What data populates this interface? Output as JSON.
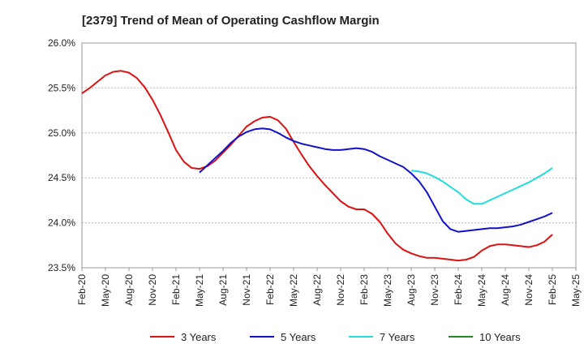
{
  "chart_data": {
    "type": "line",
    "title": "[2379]  Trend of Mean of Operating Cashflow Margin",
    "xlabel": "",
    "ylabel": "",
    "ylim": [
      23.5,
      26.0
    ],
    "yticks": [
      23.5,
      24.0,
      24.5,
      25.0,
      25.5,
      26.0
    ],
    "ytick_labels": [
      "23.5%",
      "24.0%",
      "24.5%",
      "25.0%",
      "25.5%",
      "26.0%"
    ],
    "xtick_labels": [
      "Feb-20",
      "May-20",
      "Aug-20",
      "Nov-20",
      "Feb-21",
      "May-21",
      "Aug-21",
      "Nov-21",
      "Feb-22",
      "May-22",
      "Aug-22",
      "Nov-22",
      "Feb-23",
      "May-23",
      "Aug-23",
      "Nov-23",
      "Feb-24",
      "May-24",
      "Aug-24",
      "Nov-24",
      "Feb-25",
      "May-25"
    ],
    "x_range_months": [
      0,
      63
    ],
    "series": [
      {
        "name": "3 Years",
        "color": "#dd1111",
        "x": [
          0,
          1,
          2,
          3,
          4,
          5,
          6,
          7,
          8,
          9,
          10,
          11,
          12,
          13,
          14,
          15,
          16,
          17,
          18,
          19,
          20,
          21,
          22,
          23,
          24,
          25,
          26,
          27,
          28,
          29,
          30,
          31,
          32,
          33,
          34,
          35,
          36,
          37,
          38,
          39,
          40,
          41,
          42,
          43,
          44,
          45,
          46,
          47,
          48,
          49,
          50,
          51,
          52,
          53,
          54,
          55,
          56,
          57,
          58,
          59,
          60
        ],
        "values": [
          25.44,
          25.5,
          25.57,
          25.64,
          25.68,
          25.69,
          25.67,
          25.61,
          25.51,
          25.37,
          25.2,
          25.01,
          24.81,
          24.68,
          24.61,
          24.6,
          24.63,
          24.69,
          24.78,
          24.87,
          24.97,
          25.07,
          25.13,
          25.17,
          25.18,
          25.14,
          25.05,
          24.9,
          24.76,
          24.63,
          24.52,
          24.42,
          24.33,
          24.24,
          24.18,
          24.15,
          24.15,
          24.1,
          24.01,
          23.88,
          23.77,
          23.7,
          23.66,
          23.63,
          23.61,
          23.61,
          23.6,
          23.59,
          23.58,
          23.59,
          23.62,
          23.69,
          23.74,
          23.76,
          23.76,
          23.75,
          23.74,
          23.73,
          23.75,
          23.79,
          23.87
        ]
      },
      {
        "name": "5 Years",
        "color": "#1111cc",
        "x": [
          15,
          16,
          17,
          18,
          19,
          20,
          21,
          22,
          23,
          24,
          25,
          26,
          27,
          28,
          29,
          30,
          31,
          32,
          33,
          34,
          35,
          36,
          37,
          38,
          39,
          40,
          41,
          42,
          43,
          44,
          45,
          46,
          47,
          48,
          49,
          50,
          51,
          52,
          53,
          54,
          55,
          56,
          57,
          58,
          59,
          60
        ],
        "values": [
          24.56,
          24.64,
          24.72,
          24.8,
          24.89,
          24.96,
          25.01,
          25.04,
          25.05,
          25.04,
          25.0,
          24.95,
          24.91,
          24.88,
          24.86,
          24.84,
          24.82,
          24.81,
          24.81,
          24.82,
          24.83,
          24.82,
          24.79,
          24.74,
          24.7,
          24.66,
          24.62,
          24.55,
          24.46,
          24.34,
          24.18,
          24.02,
          23.93,
          23.9,
          23.91,
          23.92,
          23.93,
          23.94,
          23.94,
          23.95,
          23.96,
          23.98,
          24.01,
          24.04,
          24.07,
          24.11
        ]
      },
      {
        "name": "7 Years",
        "color": "#22dddd",
        "x": [
          42,
          43,
          44,
          45,
          46,
          47,
          48,
          49,
          50,
          51,
          52,
          53,
          54,
          55,
          56,
          57,
          58,
          59,
          60
        ],
        "values": [
          24.58,
          24.57,
          24.55,
          24.51,
          24.46,
          24.4,
          24.34,
          24.26,
          24.21,
          24.21,
          24.25,
          24.29,
          24.33,
          24.37,
          24.41,
          24.45,
          24.5,
          24.55,
          24.61
        ]
      },
      {
        "name": "10 Years",
        "color": "#228822",
        "x": [],
        "values": []
      }
    ]
  }
}
